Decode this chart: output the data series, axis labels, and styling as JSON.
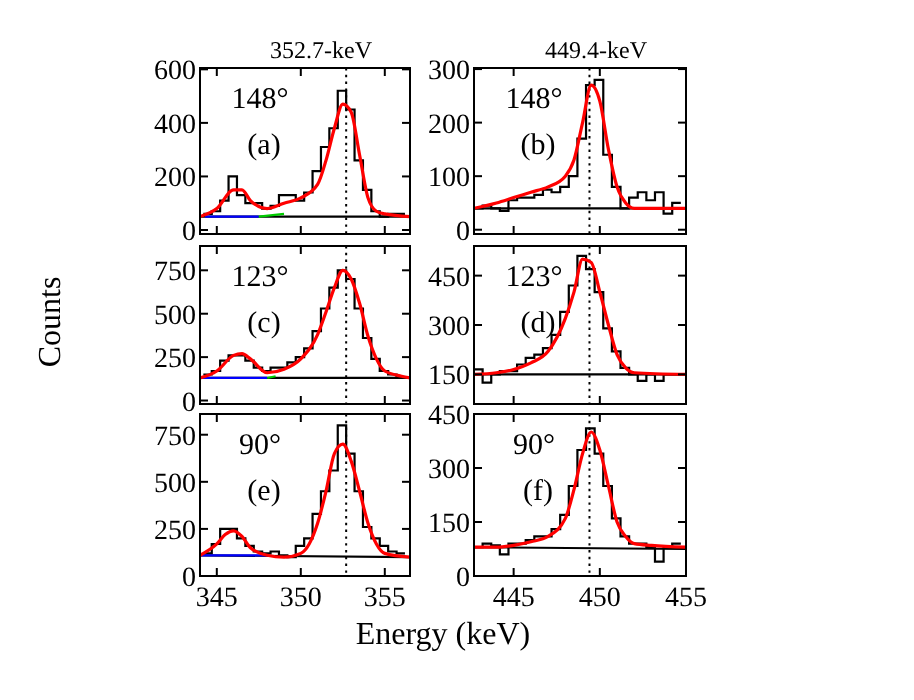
{
  "chart_data": [
    {
      "type": "histogram",
      "title": "352.7-keV",
      "xlim": [
        344,
        356.5
      ],
      "ylim": [
        -15,
        605
      ],
      "xticks": [
        345,
        350,
        355
      ],
      "yticks": [
        0,
        200,
        400,
        600
      ],
      "tick_labels": "y",
      "annotations": [
        "148°",
        "(a)"
      ],
      "ref_lines": [
        {
          "axis": "x",
          "value": 352.7,
          "line_style": "dotted",
          "color": "#000000"
        }
      ],
      "series": [
        {
          "color": "#000000",
          "bins": [
            344.2,
            344.7,
            345.2,
            345.7,
            346.2,
            346.7,
            347.2,
            347.7,
            348.2,
            348.7,
            349.2,
            349.7,
            350.2,
            350.7,
            351.2,
            351.7,
            352.2,
            352.7,
            353.2,
            353.7,
            354.2,
            354.7,
            355.2,
            355.7,
            356.2
          ],
          "values": [
            60,
            70,
            110,
            200,
            130,
            100,
            100,
            80,
            90,
            130,
            130,
            110,
            140,
            220,
            310,
            380,
            520,
            450,
            260,
            150,
            70,
            50,
            60,
            60
          ]
        },
        {
          "type": "line",
          "color": "#000000",
          "x": [
            344,
            356.5
          ],
          "values": [
            50,
            50
          ]
        },
        {
          "type": "line",
          "color": "#0000ff",
          "x": [
            344.3,
            347.5
          ],
          "values": [
            50,
            50
          ]
        },
        {
          "type": "line",
          "color": "#00cc00",
          "x": [
            347.5,
            349
          ],
          "values": [
            50,
            60
          ]
        },
        {
          "type": "line",
          "color": "#ff0000",
          "x": [
            344,
            345,
            346,
            346.5,
            347,
            348,
            349,
            350,
            351,
            351.5,
            352,
            352.5,
            353,
            353.5,
            354,
            354.5,
            355,
            356.5
          ],
          "values": [
            50,
            80,
            150,
            150,
            110,
            80,
            100,
            120,
            170,
            260,
            380,
            470,
            440,
            280,
            120,
            70,
            60,
            50
          ]
        }
      ]
    },
    {
      "type": "histogram",
      "title": "449.4-keV",
      "xlim": [
        442.7,
        455
      ],
      "ylim": [
        -8,
        302
      ],
      "xticks": [
        445,
        450,
        455
      ],
      "yticks": [
        0,
        100,
        200,
        300
      ],
      "tick_labels": "y",
      "annotations": [
        "148°",
        "(b)"
      ],
      "ref_lines": [
        {
          "axis": "x",
          "value": 449.4,
          "line_style": "dotted",
          "color": "#000000"
        }
      ],
      "series": [
        {
          "color": "#000000",
          "bins": [
            442.7,
            443.2,
            443.7,
            444.2,
            444.7,
            445.2,
            445.7,
            446.2,
            446.7,
            447.2,
            447.7,
            448.2,
            448.7,
            449.2,
            449.7,
            450.2,
            450.7,
            451.2,
            451.7,
            452.2,
            452.7,
            453.2,
            453.7,
            454.2,
            454.7
          ],
          "values": [
            40,
            45,
            40,
            35,
            55,
            60,
            60,
            65,
            75,
            70,
            80,
            100,
            170,
            270,
            280,
            140,
            80,
            40,
            60,
            70,
            55,
            70,
            30,
            50
          ]
        },
        {
          "type": "line",
          "color": "#000000",
          "x": [
            442.7,
            455
          ],
          "values": [
            40,
            40
          ]
        },
        {
          "type": "line",
          "color": "#ff0000",
          "x": [
            442.7,
            444,
            445,
            446,
            447,
            448,
            448.5,
            449,
            449.5,
            450,
            450.5,
            451,
            451.5,
            452,
            455
          ],
          "values": [
            40,
            50,
            60,
            70,
            80,
            100,
            130,
            200,
            270,
            240,
            150,
            80,
            50,
            40,
            40
          ]
        }
      ]
    },
    {
      "type": "histogram",
      "xlim": [
        344,
        356.5
      ],
      "ylim": [
        -20,
        890
      ],
      "xticks": [
        345,
        350,
        355
      ],
      "yticks": [
        0,
        250,
        500,
        750
      ],
      "tick_labels": "y",
      "ylabel": "Counts",
      "annotations": [
        "123°",
        "(c)"
      ],
      "ref_lines": [
        {
          "axis": "x",
          "value": 352.7,
          "line_style": "dotted",
          "color": "#000000"
        }
      ],
      "series": [
        {
          "color": "#000000",
          "bins": [
            344.2,
            344.7,
            345.2,
            345.7,
            346.2,
            346.7,
            347.2,
            347.7,
            348.2,
            348.7,
            349.2,
            349.7,
            350.2,
            350.7,
            351.2,
            351.7,
            352.2,
            352.7,
            353.2,
            353.7,
            354.2,
            354.7,
            355.2,
            355.7,
            356.2
          ],
          "values": [
            150,
            170,
            230,
            260,
            260,
            230,
            190,
            170,
            190,
            190,
            220,
            250,
            300,
            400,
            530,
            650,
            750,
            700,
            530,
            360,
            240,
            170,
            150,
            130
          ]
        },
        {
          "type": "line",
          "color": "#000000",
          "x": [
            344,
            356.5
          ],
          "values": [
            130,
            130
          ]
        },
        {
          "type": "line",
          "color": "#0000ff",
          "x": [
            344,
            348
          ],
          "values": [
            130,
            130
          ]
        },
        {
          "type": "line",
          "color": "#00cc00",
          "x": [
            348,
            348.5
          ],
          "values": [
            130,
            140
          ]
        },
        {
          "type": "line",
          "color": "#ff0000",
          "x": [
            344,
            345,
            346,
            346.5,
            347,
            348,
            349,
            350,
            351,
            351.5,
            352,
            352.5,
            353,
            353.5,
            354,
            354.5,
            355,
            356,
            356.5
          ],
          "values": [
            130,
            170,
            260,
            270,
            240,
            160,
            180,
            240,
            380,
            510,
            650,
            750,
            700,
            560,
            370,
            240,
            170,
            140,
            130
          ]
        }
      ]
    },
    {
      "type": "histogram",
      "xlim": [
        442.7,
        455
      ],
      "ylim": [
        60,
        540
      ],
      "xticks": [
        445,
        450,
        455
      ],
      "yticks": [
        150,
        300,
        450
      ],
      "tick_labels": "y",
      "annotations": [
        "123°",
        "(d)"
      ],
      "ref_lines": [
        {
          "axis": "x",
          "value": 449.4,
          "line_style": "dotted",
          "color": "#000000"
        }
      ],
      "series": [
        {
          "color": "#000000",
          "bins": [
            442.7,
            443.2,
            443.7,
            444.2,
            444.7,
            445.2,
            445.7,
            446.2,
            446.7,
            447.2,
            447.7,
            448.2,
            448.7,
            449.2,
            449.7,
            450.2,
            450.7,
            451.2,
            451.7,
            452.2,
            452.7,
            453.2,
            453.7,
            454.2,
            454.7
          ],
          "values": [
            165,
            125,
            150,
            160,
            160,
            180,
            200,
            210,
            230,
            270,
            340,
            420,
            510,
            470,
            400,
            290,
            220,
            170,
            150,
            130,
            150,
            130,
            150,
            150
          ]
        },
        {
          "type": "line",
          "color": "#000000",
          "x": [
            442.7,
            455
          ],
          "values": [
            150,
            150
          ]
        },
        {
          "type": "line",
          "color": "#ff0000",
          "x": [
            442.7,
            444,
            445,
            446,
            447,
            448,
            448.5,
            449,
            449.5,
            450,
            450.5,
            451,
            451.5,
            452,
            455
          ],
          "values": [
            150,
            155,
            165,
            185,
            220,
            320,
            400,
            500,
            490,
            400,
            300,
            210,
            170,
            155,
            150
          ]
        }
      ]
    },
    {
      "type": "histogram",
      "xlim": [
        344,
        356.5
      ],
      "ylim": [
        0,
        860
      ],
      "xticks": [
        345,
        350,
        355
      ],
      "yticks": [
        0,
        250,
        500,
        750
      ],
      "xlabel": "Energy (keV)",
      "annotations": [
        "90°",
        "(e)"
      ],
      "ref_lines": [
        {
          "axis": "x",
          "value": 352.7,
          "line_style": "dotted",
          "color": "#000000"
        }
      ],
      "series": [
        {
          "color": "#000000",
          "bins": [
            344.2,
            344.7,
            345.2,
            345.7,
            346.2,
            346.7,
            347.2,
            347.7,
            348.2,
            348.7,
            349.2,
            349.7,
            350.2,
            350.7,
            351.2,
            351.7,
            352.2,
            352.7,
            353.2,
            353.7,
            354.2,
            354.7,
            355.2,
            355.7,
            356.2
          ],
          "values": [
            120,
            170,
            250,
            250,
            200,
            160,
            130,
            120,
            130,
            110,
            100,
            160,
            200,
            330,
            450,
            560,
            800,
            650,
            450,
            260,
            200,
            160,
            130,
            120
          ]
        },
        {
          "type": "line",
          "color": "#000000",
          "x": [
            344,
            356.5
          ],
          "values": [
            110,
            100
          ]
        },
        {
          "type": "line",
          "color": "#0000ff",
          "x": [
            344,
            348
          ],
          "values": [
            110,
            110
          ]
        },
        {
          "type": "line",
          "color": "#ff0000",
          "x": [
            344,
            345,
            345.5,
            346,
            346.5,
            347,
            348,
            349,
            350,
            351,
            351.5,
            352,
            352.5,
            353,
            353.5,
            354,
            354.5,
            355,
            356.5
          ],
          "values": [
            110,
            170,
            220,
            240,
            210,
            150,
            110,
            100,
            120,
            280,
            450,
            650,
            700,
            610,
            450,
            280,
            170,
            120,
            100
          ]
        }
      ]
    },
    {
      "type": "histogram",
      "xlim": [
        442.7,
        455
      ],
      "ylim": [
        0,
        450
      ],
      "xticks": [
        445,
        450,
        455
      ],
      "yticks": [
        0,
        150,
        300,
        450
      ],
      "annotations": [
        "90°",
        "(f)"
      ],
      "ref_lines": [
        {
          "axis": "x",
          "value": 449.4,
          "line_style": "dotted",
          "color": "#000000"
        }
      ],
      "series": [
        {
          "color": "#000000",
          "bins": [
            442.7,
            443.2,
            443.7,
            444.2,
            444.7,
            445.2,
            445.7,
            446.2,
            446.7,
            447.2,
            447.7,
            448.2,
            448.7,
            449.2,
            449.7,
            450.2,
            450.7,
            451.2,
            451.7,
            452.2,
            452.7,
            453.2,
            453.7,
            454.2,
            454.7
          ],
          "values": [
            80,
            90,
            85,
            60,
            90,
            90,
            100,
            110,
            110,
            130,
            170,
            250,
            350,
            410,
            340,
            250,
            160,
            110,
            90,
            90,
            80,
            40,
            80,
            90
          ]
        },
        {
          "type": "line",
          "color": "#000000",
          "x": [
            442.7,
            455
          ],
          "values": [
            80,
            75
          ]
        },
        {
          "type": "line",
          "color": "#ff0000",
          "x": [
            442.7,
            444,
            445,
            446,
            447,
            448,
            448.5,
            449,
            449.5,
            450,
            450.5,
            451,
            451.5,
            452,
            453,
            455
          ],
          "values": [
            80,
            80,
            85,
            95,
            110,
            160,
            240,
            340,
            400,
            350,
            250,
            150,
            110,
            90,
            85,
            80
          ]
        }
      ]
    }
  ]
}
